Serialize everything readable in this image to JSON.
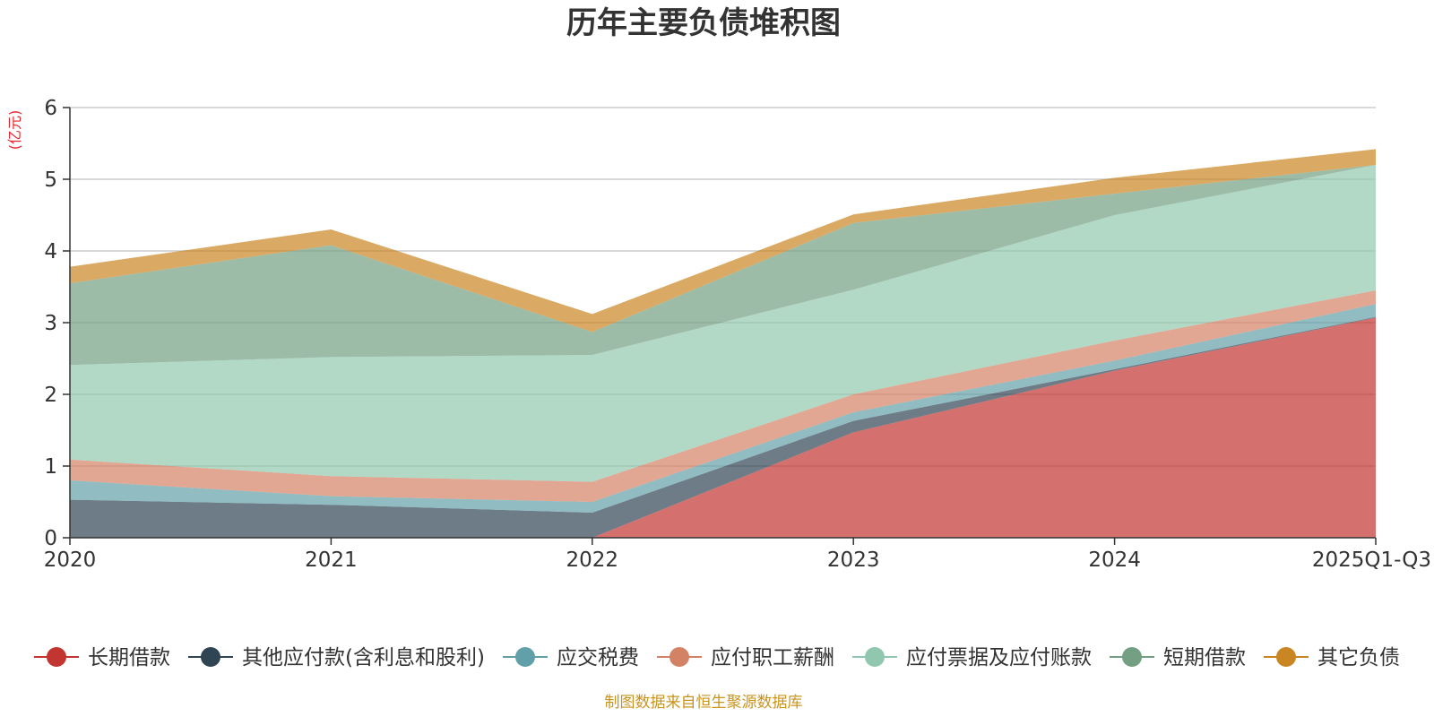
{
  "chart_data": {
    "type": "area",
    "stacked": true,
    "title": "历年主要负债堆积图",
    "unit_label": "(亿元)",
    "source_note": "制图数据来自恒生聚源数据库",
    "categories": [
      "2020",
      "2021",
      "2022",
      "2023",
      "2024",
      "2025Q1-Q3"
    ],
    "ylim": [
      0,
      6
    ],
    "yticks": [
      "0",
      "1",
      "2",
      "3",
      "4",
      "5",
      "6"
    ],
    "grid": true,
    "legend_position": "bottom",
    "series": [
      {
        "name": "长期借款",
        "color": "#c23531",
        "values": [
          0,
          0,
          0,
          1.47,
          2.33,
          3.07
        ]
      },
      {
        "name": "其他应付款(含利息和股利)",
        "color": "#2f4554",
        "values": [
          0.53,
          0.46,
          0.35,
          0.16,
          0.02,
          0.01
        ]
      },
      {
        "name": "应交税费",
        "color": "#61a0a8",
        "values": [
          0.27,
          0.12,
          0.15,
          0.12,
          0.12,
          0.18
        ]
      },
      {
        "name": "应付职工薪酬",
        "color": "#d48265",
        "values": [
          0.29,
          0.28,
          0.28,
          0.25,
          0.28,
          0.19
        ]
      },
      {
        "name": "应付票据及应付账款",
        "color": "#91c7ae",
        "values": [
          1.32,
          1.66,
          1.77,
          1.46,
          1.75,
          1.75
        ]
      },
      {
        "name": "短期借款",
        "color": "#749f83",
        "values": [
          1.14,
          1.56,
          0.32,
          0.93,
          0.3,
          0
        ]
      },
      {
        "name": "其它负债",
        "color": "#ca8622",
        "values": [
          0.23,
          0.22,
          0.25,
          0.12,
          0.22,
          0.22
        ]
      }
    ]
  }
}
